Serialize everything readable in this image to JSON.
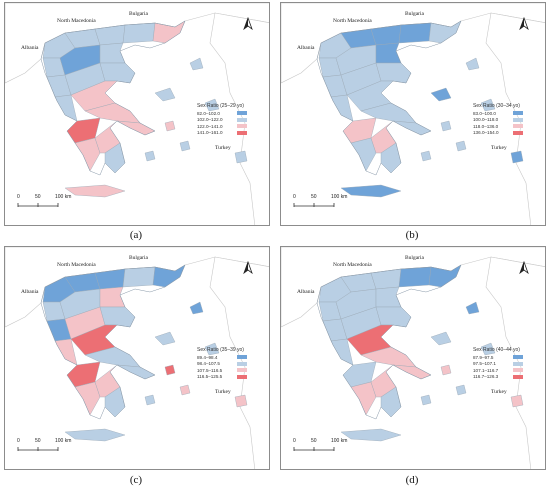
{
  "countries": {
    "bulgaria": "Bulgaria",
    "north_macedonia": "North Macedonia",
    "albania": "Albania",
    "turkey": "Turkey"
  },
  "scale_bar": {
    "labels": [
      "0",
      "50",
      "100 km"
    ]
  },
  "north_arrow_icon": "north-arrow-icon",
  "colors": {
    "cat1": "#6fa3d8",
    "cat2": "#b9cfe4",
    "cat3": "#f4c3c8",
    "cat4": "#ec6f74",
    "land_outline": "#c8c8c8"
  },
  "panels": [
    {
      "caption": "(a)",
      "legend_title": "Sex Ratio (25–29 yo)",
      "legend": [
        "82.0–102.0",
        "102.0–122.0",
        "122.0–141.0",
        "141.0–161.0"
      ]
    },
    {
      "caption": "(b)",
      "legend_title": "Sex Ratio (30–34 yo)",
      "legend": [
        "83.0–100.0",
        "100.0–118.0",
        "118.0–136.0",
        "136.0–154.0"
      ]
    },
    {
      "caption": "(c)",
      "legend_title": "Sex Ratio (35–39 yo)",
      "legend": [
        "89.4–98.4",
        "98.4–107.5",
        "107.5–116.5",
        "116.5–125.5"
      ]
    },
    {
      "caption": "(d)",
      "legend_title": "Sex Ratio (40–44 yo)",
      "legend": [
        "87.9–97.5",
        "97.5–107.1",
        "107.1–116.7",
        "116.7–126.3"
      ]
    }
  ]
}
